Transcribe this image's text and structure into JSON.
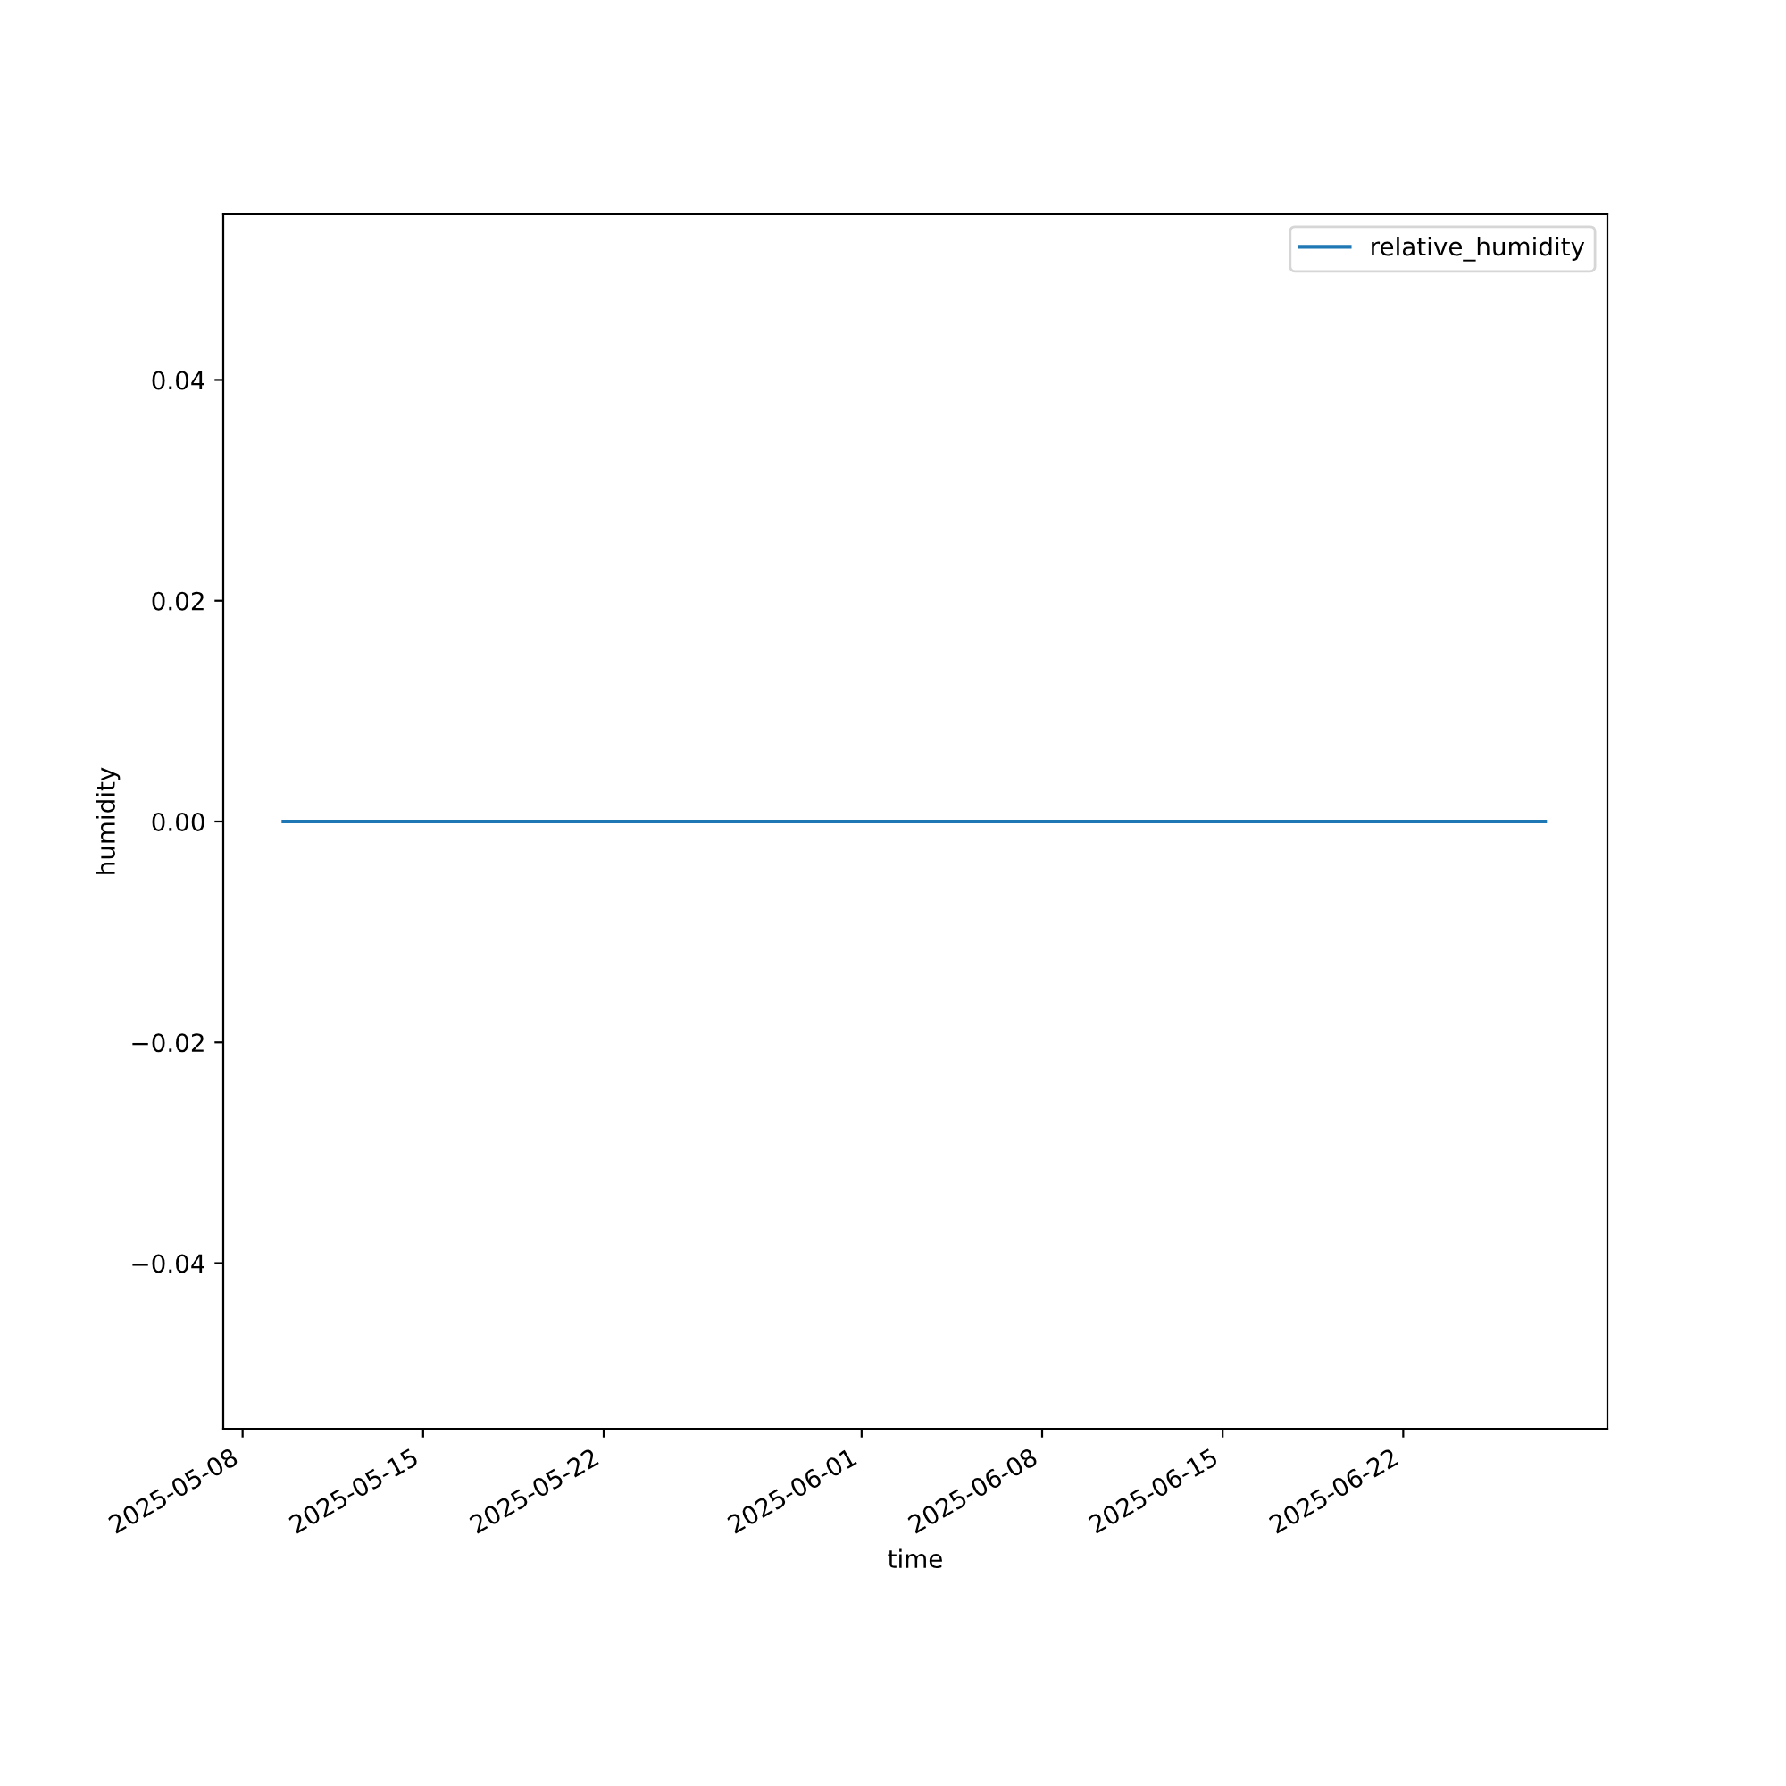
{
  "chart_data": {
    "type": "line",
    "xlabel": "time",
    "ylabel": "humidity",
    "x": [
      "2025-05-09T14:00",
      "2025-06-27T12:00"
    ],
    "series": [
      {
        "name": "relative_humidity",
        "color": "#1f77b4",
        "values": [
          0,
          0
        ]
      }
    ],
    "xlim": [
      "2025-05-07T06:00",
      "2025-06-29T22:00"
    ],
    "xticks": [
      "2025-05-08",
      "2025-05-15",
      "2025-05-22",
      "2025-06-01",
      "2025-06-08",
      "2025-06-15",
      "2025-06-22"
    ],
    "ylim": [
      -0.055,
      0.055
    ],
    "yticks": [
      {
        "value": -0.04,
        "label": "−0.04"
      },
      {
        "value": -0.02,
        "label": "−0.02"
      },
      {
        "value": 0,
        "label": "0.00"
      },
      {
        "value": 0.02,
        "label": "0.02"
      },
      {
        "value": 0.04,
        "label": "0.04"
      }
    ],
    "legend": "top right",
    "grid": false
  }
}
